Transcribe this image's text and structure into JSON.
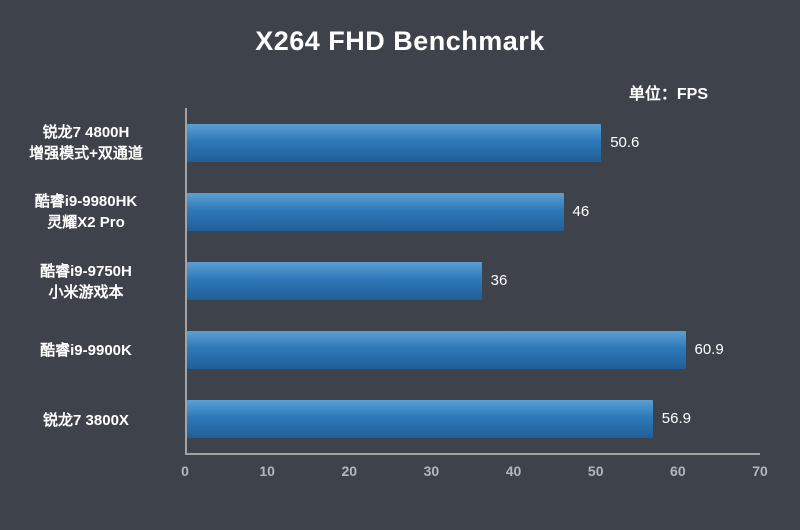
{
  "header": {
    "title": "X264 FHD Benchmark",
    "unit_label": "单位：FPS"
  },
  "chart_data": {
    "type": "bar",
    "orientation": "horizontal",
    "title": "X264 FHD Benchmark",
    "unit": "单位：FPS",
    "categories": [
      "锐龙7 4800H\n增强模式+双通道",
      "酷睿i9-9980HK\n灵耀X2 Pro",
      "酷睿i9-9750H\n小米游戏本",
      "酷睿i9-9900K",
      "锐龙7 3800X"
    ],
    "values": [
      50.6,
      46,
      36,
      60.9,
      56.9
    ],
    "value_labels": [
      "50.6",
      "46",
      "36",
      "60.9",
      "56.9"
    ],
    "xlabel": "",
    "ylabel": "",
    "xlim": [
      0,
      70
    ],
    "xticks": [
      0,
      10,
      20,
      30,
      40,
      50,
      60,
      70
    ],
    "grid": false,
    "legend": "none",
    "bar_color": "#2e79b8",
    "background_color": "#3e434b",
    "axis_color": "#a3a3a3",
    "text_color": "#ffffff"
  }
}
